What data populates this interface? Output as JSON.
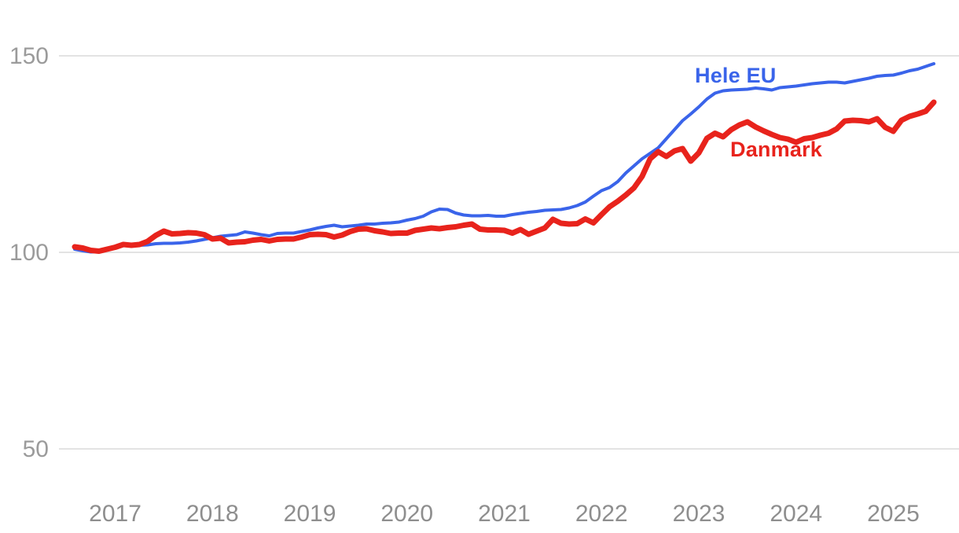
{
  "chart_data": {
    "type": "line",
    "x_frequency": "monthly",
    "x_start": "2016-08",
    "x_end": "2025-06",
    "x_tick_years": [
      2017,
      2018,
      2019,
      2020,
      2021,
      2022,
      2023,
      2024,
      2025
    ],
    "y_ticks": [
      50,
      100,
      150
    ],
    "y_tick_labels": [
      "50",
      "100",
      "150"
    ],
    "grid": "horizontal",
    "legend": "inline-labels-at-line",
    "series": [
      {
        "name": "Hele EU",
        "color": "#3a64ea",
        "stroke_width": 4,
        "values": [
          100.8,
          100.4,
          100.1,
          100.2,
          100.6,
          101.2,
          101.9,
          101.6,
          101.8,
          101.9,
          102.2,
          102.3,
          102.3,
          102.4,
          102.6,
          102.9,
          103.3,
          103.7,
          104.1,
          104.3,
          104.5,
          105.2,
          104.9,
          104.5,
          104.2,
          104.8,
          104.9,
          104.9,
          105.3,
          105.7,
          106.2,
          106.6,
          106.9,
          106.5,
          106.7,
          106.9,
          107.2,
          107.2,
          107.4,
          107.5,
          107.7,
          108.2,
          108.6,
          109.2,
          110.3,
          111.0,
          110.9,
          110.0,
          109.5,
          109.3,
          109.3,
          109.4,
          109.2,
          109.2,
          109.6,
          109.9,
          110.2,
          110.4,
          110.7,
          110.8,
          110.9,
          111.3,
          111.9,
          112.8,
          114.3,
          115.7,
          116.5,
          118.0,
          120.2,
          122.0,
          123.8,
          125.2,
          126.6,
          128.9,
          131.2,
          133.5,
          135.2,
          137.0,
          139.0,
          140.5,
          141.1,
          141.3,
          141.4,
          141.5,
          141.8,
          141.6,
          141.3,
          141.9,
          142.1,
          142.3,
          142.6,
          142.9,
          143.1,
          143.3,
          143.3,
          143.1,
          143.5,
          143.9,
          144.3,
          144.8,
          145.0,
          145.1,
          145.6,
          146.2,
          146.6,
          147.3,
          148.0
        ]
      },
      {
        "name": "Danmark",
        "color": "#e8231c",
        "stroke_width": 7,
        "values": [
          101.4,
          101.1,
          100.5,
          100.3,
          100.8,
          101.3,
          102.0,
          101.8,
          102.0,
          102.8,
          104.3,
          105.4,
          104.7,
          104.8,
          105.0,
          104.9,
          104.5,
          103.4,
          103.6,
          102.4,
          102.6,
          102.7,
          103.1,
          103.3,
          102.9,
          103.3,
          103.4,
          103.4,
          103.9,
          104.5,
          104.6,
          104.5,
          103.9,
          104.4,
          105.3,
          105.9,
          106.0,
          105.5,
          105.2,
          104.8,
          104.9,
          104.9,
          105.6,
          105.9,
          106.2,
          106.0,
          106.3,
          106.5,
          106.9,
          107.2,
          105.9,
          105.7,
          105.7,
          105.6,
          104.9,
          105.8,
          104.6,
          105.4,
          106.2,
          108.4,
          107.4,
          107.2,
          107.3,
          108.5,
          107.5,
          109.6,
          111.6,
          113.0,
          114.6,
          116.4,
          119.3,
          123.8,
          125.6,
          124.4,
          125.8,
          126.4,
          123.2,
          125.3,
          129.0,
          130.3,
          129.4,
          131.2,
          132.4,
          133.2,
          131.9,
          130.9,
          130.0,
          129.2,
          128.8,
          128.0,
          128.9,
          129.2,
          129.8,
          130.3,
          131.4,
          133.4,
          133.6,
          133.5,
          133.2,
          134.0,
          131.8,
          130.8,
          133.6,
          134.6,
          135.2,
          135.9,
          138.2
        ]
      }
    ],
    "axis_colors": {
      "y_tick_label": "#9b9b9b",
      "x_tick_label": "#8e8e8e",
      "gridline": "#e3e3e3"
    }
  }
}
